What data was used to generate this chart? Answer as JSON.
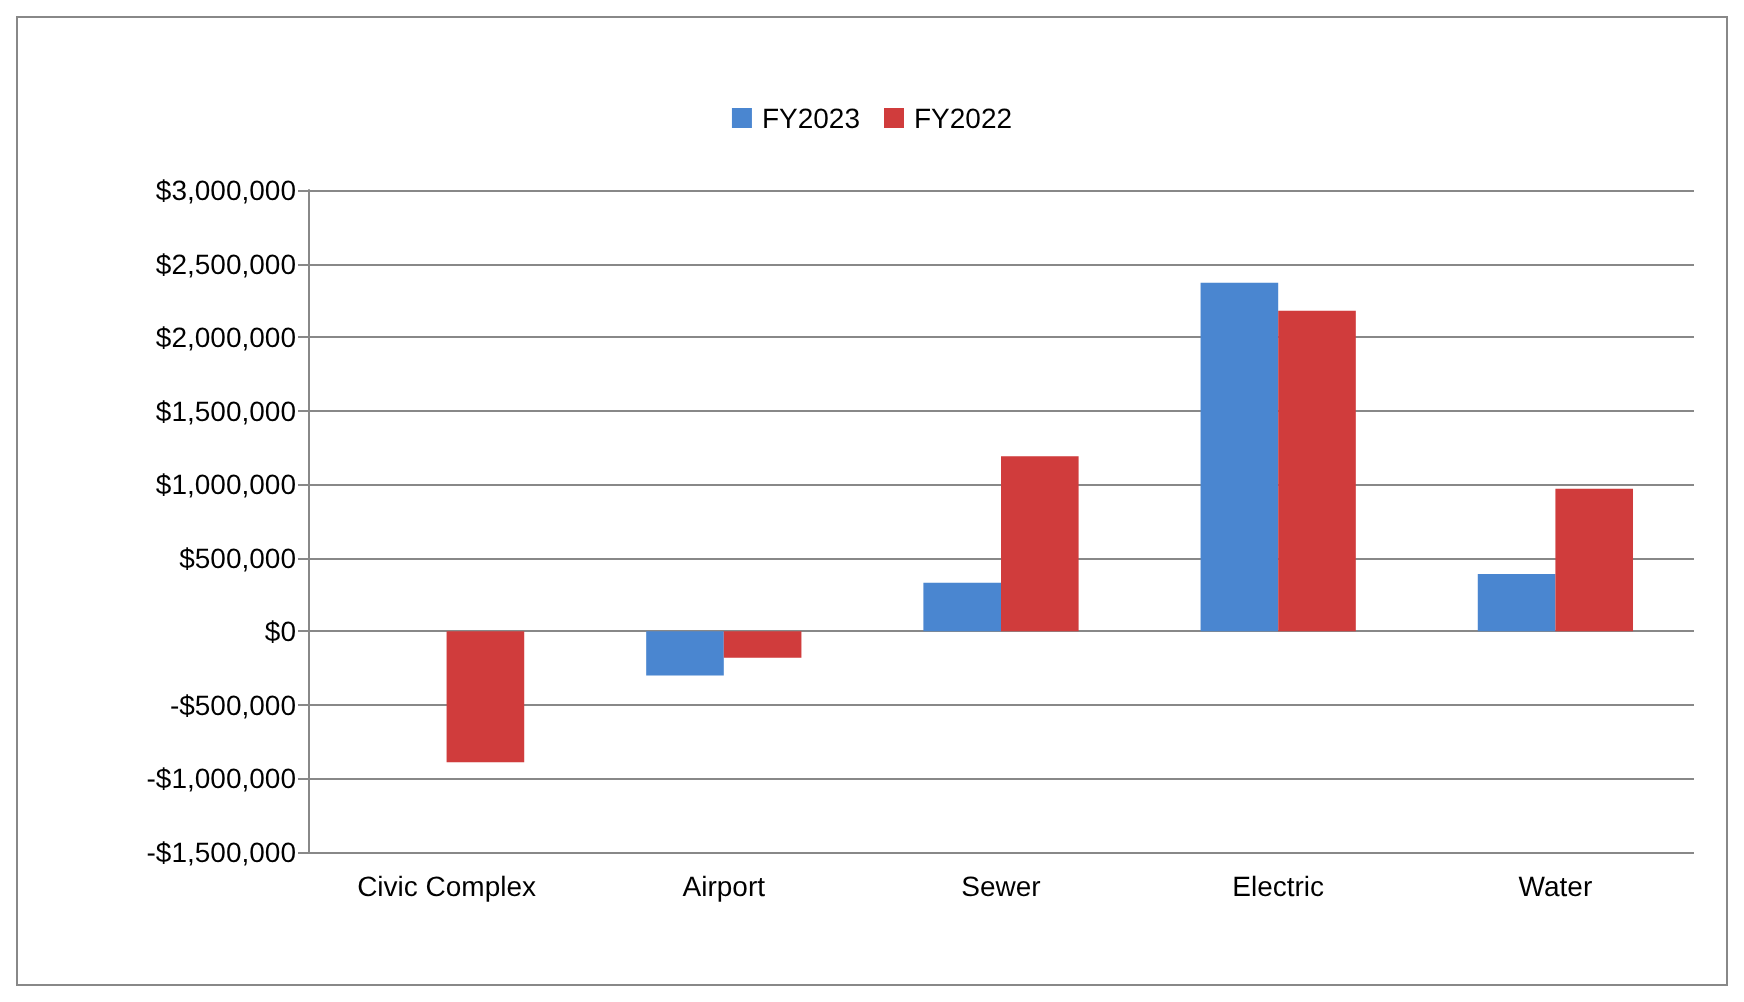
{
  "chart_data": {
    "type": "bar",
    "categories": [
      "Civic Complex",
      "Airport",
      "Sewer",
      "Electric",
      "Water"
    ],
    "series": [
      {
        "name": "FY2023",
        "color": "#4a86d0",
        "values": [
          null,
          -300000,
          330000,
          2370000,
          390000
        ]
      },
      {
        "name": "FY2022",
        "color": "#d03c3c",
        "values": [
          -890000,
          -180000,
          1190000,
          2180000,
          970000
        ]
      }
    ],
    "ylim": [
      -1500000,
      3000000
    ],
    "yticks": [
      {
        "value": -1500000,
        "label": "-$1,500,000"
      },
      {
        "value": -1000000,
        "label": "-$1,000,000"
      },
      {
        "value": -500000,
        "label": "-$500,000"
      },
      {
        "value": 0,
        "label": "$0"
      },
      {
        "value": 500000,
        "label": "$500,000"
      },
      {
        "value": 1000000,
        "label": "$1,000,000"
      },
      {
        "value": 1500000,
        "label": "$1,500,000"
      },
      {
        "value": 2000000,
        "label": "$2,000,000"
      },
      {
        "value": 2500000,
        "label": "$2,500,000"
      },
      {
        "value": 3000000,
        "label": "$3,000,000"
      }
    ],
    "grid": "y",
    "legend": "top"
  }
}
